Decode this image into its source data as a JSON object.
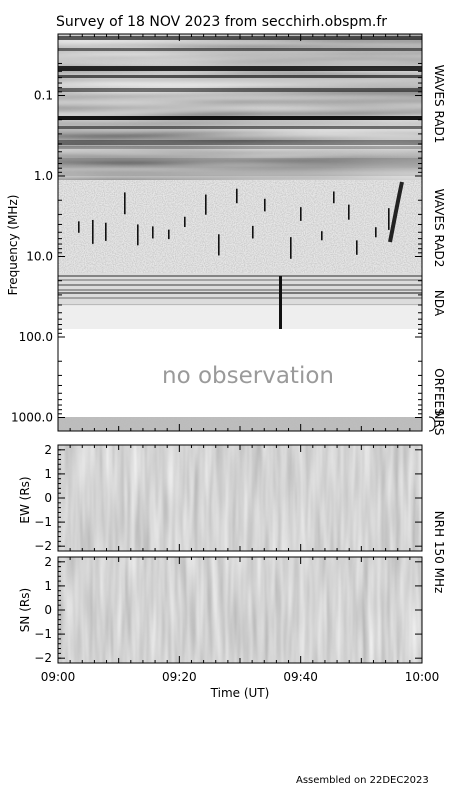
{
  "chart_data": {
    "type": "heatmap",
    "title": "Survey of 18 NOV 2023 from secchirh.obspm.fr",
    "footer": "Assembled on 22DEC2023",
    "xlabel": "Time (UT)",
    "x_ticks": [
      "09:00",
      "09:20",
      "09:40",
      "10:00"
    ],
    "x_range": [
      "09:00",
      "10:00"
    ],
    "spectrum": {
      "ylabel": "Frequency (MHz)",
      "y_scale": "log",
      "y_range_mhz": [
        0.04,
        1500
      ],
      "y_ticks": [
        "0.1",
        "1.0",
        "10.0",
        "100.0",
        "1000.0"
      ],
      "placeholder_text": "no observation",
      "instruments": [
        {
          "name": "WAVES RAD1",
          "f_min_mhz": 0.04,
          "f_max_mhz": 1.0,
          "observed": true
        },
        {
          "name": "WAVES RAD2",
          "f_min_mhz": 1.0,
          "f_max_mhz": 14,
          "observed": true
        },
        {
          "name": "NDA",
          "f_min_mhz": 14,
          "f_max_mhz": 80,
          "observed": true
        },
        {
          "name": "ORFEES",
          "f_min_mhz": 140,
          "f_max_mhz": 1000,
          "observed": false
        },
        {
          "name": "NRS",
          "f_min_mhz": 1000,
          "f_max_mhz": 1500,
          "observed": true
        }
      ]
    },
    "nrh": {
      "label": "NRH 150 MHz",
      "panels": [
        {
          "ylabel": "EW (Rs)",
          "y_range": [
            -2.2,
            2.2
          ],
          "y_ticks": [
            "2",
            "1",
            "0",
            "−1",
            "−2"
          ]
        },
        {
          "ylabel": "SN (Rs)",
          "y_range": [
            -2.2,
            2.2
          ],
          "y_ticks": [
            "2",
            "1",
            "0",
            "−1",
            "−2"
          ]
        }
      ]
    },
    "colors": {
      "background": "#ffffff",
      "axis": "#000000",
      "low": "#ffffff",
      "high": "#000000"
    }
  }
}
